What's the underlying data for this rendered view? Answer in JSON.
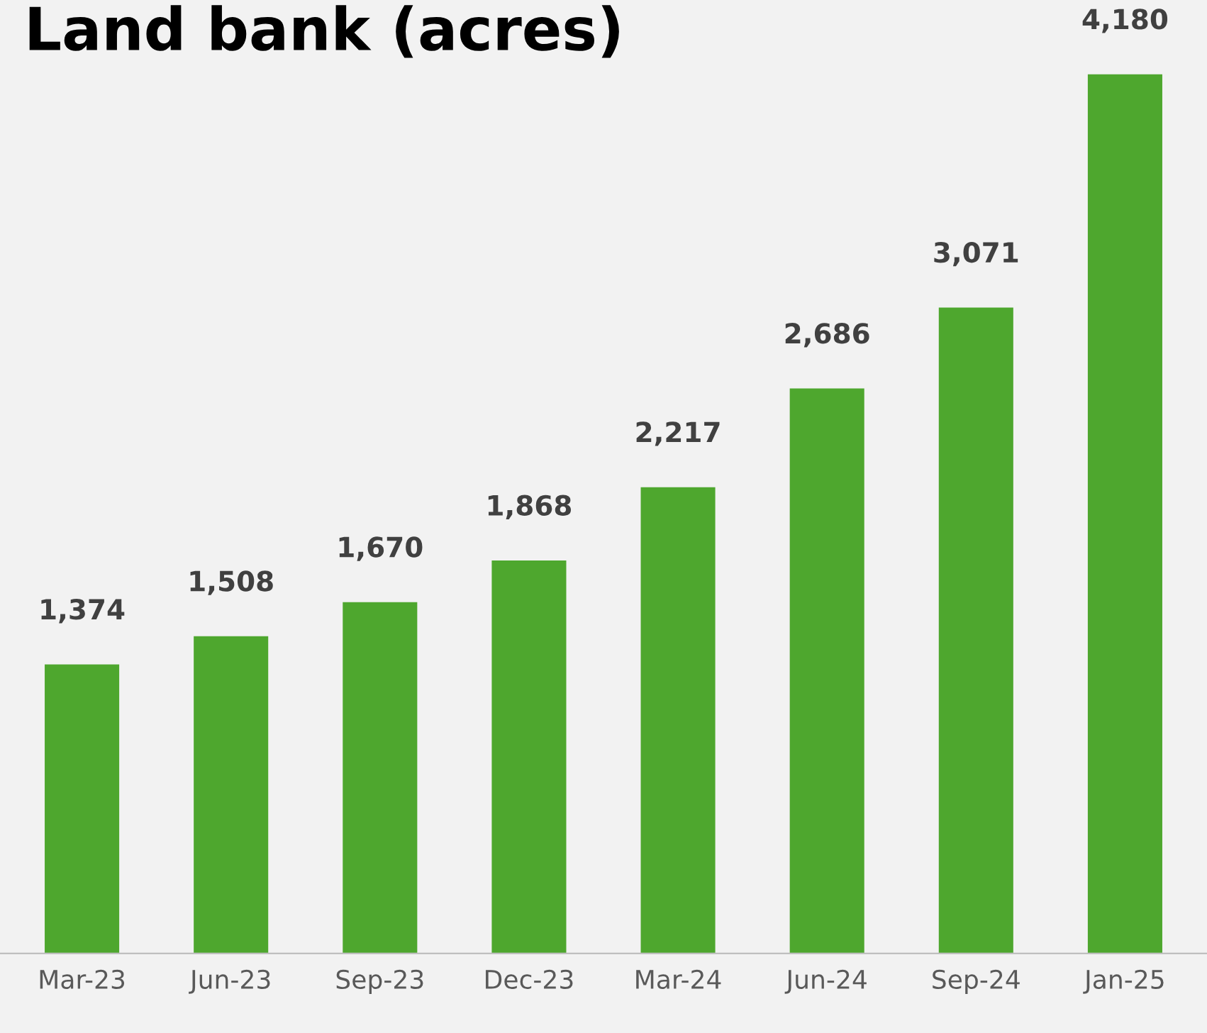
{
  "chart_data": {
    "type": "bar",
    "title": "Land bank (acres)",
    "categories": [
      "Mar-23",
      "Jun-23",
      "Sep-23",
      "Dec-23",
      "Mar-24",
      "Jun-24",
      "Sep-24",
      "Jan-25"
    ],
    "values": [
      1374,
      1508,
      1670,
      1868,
      2217,
      2686,
      3071,
      4180
    ],
    "value_labels": [
      "1,374",
      "1,508",
      "1,670",
      "1,868",
      "2,217",
      "2,686",
      "3,071",
      "4,180"
    ],
    "color": "#4ea72e"
  }
}
